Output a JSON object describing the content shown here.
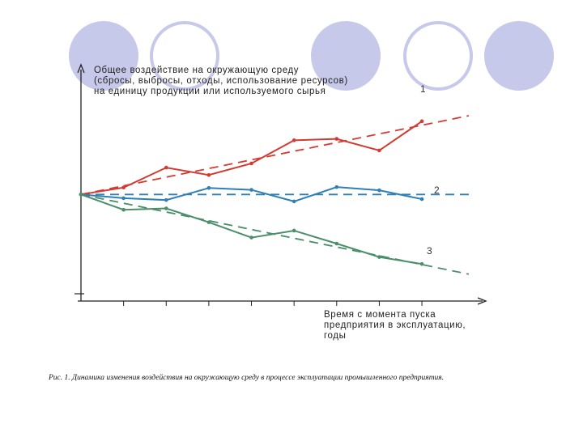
{
  "chart_data": {
    "type": "line",
    "ylabel": "Общее воздействие на окружающую среду\n(сбросы, выбросы, отходы, использование ресурсов)\nна единицу продукции или используемого сырья",
    "xlabel": "Время с момента пуска\nпредприятия в эксплуатацию,\nгоды",
    "caption": "Рис. 1. Динамика изменения воздействия на окружающую среду в процессе эксплуатации промышленного предприятия.",
    "x": [
      0,
      1,
      2,
      3,
      4,
      5,
      6,
      7,
      8
    ],
    "xlim": [
      0,
      9.5
    ],
    "ylim": [
      -2.3,
      2.8
    ],
    "grid": false,
    "series": [
      {
        "name": "1",
        "color": "#d43a32",
        "values": [
          0,
          0.15,
          0.58,
          0.42,
          0.67,
          1.17,
          1.2,
          0.95,
          1.58
        ],
        "trend": [
          0,
          1.7
        ]
      },
      {
        "name": "2",
        "color": "#2f7fb8",
        "values": [
          0,
          -0.08,
          -0.12,
          0.14,
          0.1,
          -0.15,
          0.16,
          0.09,
          -0.1
        ],
        "trend": [
          0,
          0
        ]
      },
      {
        "name": "3",
        "color": "#4a8f6a",
        "values": [
          0,
          -0.33,
          -0.3,
          -0.6,
          -0.93,
          -0.78,
          -1.06,
          -1.35,
          -1.5
        ],
        "trend": [
          0,
          -1.72
        ]
      }
    ]
  },
  "colors": {
    "circle_fill": "#c7c9ea",
    "circle_stroke": "#c7c9ea",
    "axis": "#222222"
  }
}
